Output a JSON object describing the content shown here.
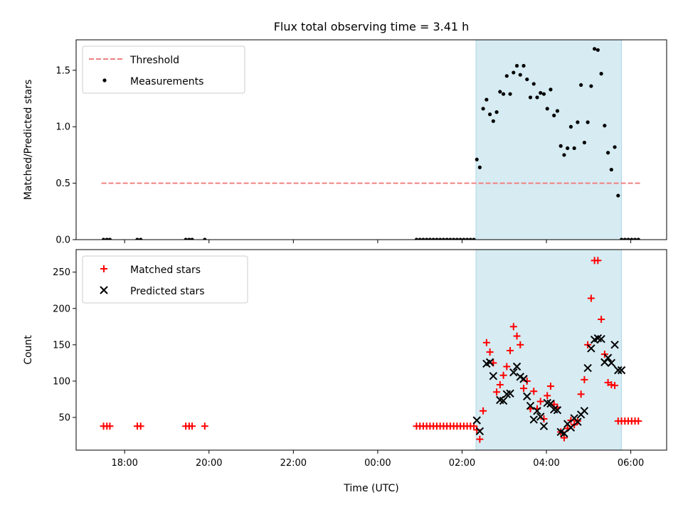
{
  "chart_data": {
    "type": "scatter",
    "title": "Flux total observing time = 3.41 h",
    "xlabel": "Time (UTC)",
    "x_unit": "hours since 00:00 UTC (negative = previous day)",
    "xlim": [
      -7.15,
      6.85
    ],
    "xticks": [
      {
        "value": -6,
        "label": "18:00"
      },
      {
        "value": -4,
        "label": "20:00"
      },
      {
        "value": -2,
        "label": "22:00"
      },
      {
        "value": 0,
        "label": "00:00"
      },
      {
        "value": 2,
        "label": "02:00"
      },
      {
        "value": 4,
        "label": "04:00"
      },
      {
        "value": 6,
        "label": "06:00"
      }
    ],
    "observing_window": [
      2.33,
      5.78
    ],
    "panels": [
      {
        "id": "ratio",
        "ylabel": "Matched/Predicted stars",
        "ylim": [
          0,
          1.77
        ],
        "yticks": [
          {
            "value": 0,
            "label": "0.0"
          },
          {
            "value": 0.5,
            "label": "0.5"
          },
          {
            "value": 1.0,
            "label": "1.0"
          },
          {
            "value": 1.5,
            "label": "1.5"
          }
        ],
        "legend": {
          "position": "top-left",
          "entries": [
            "Threshold",
            "Measurements"
          ]
        },
        "threshold": {
          "name": "Threshold",
          "value": 0.5,
          "x_range": [
            -6.55,
            6.25
          ],
          "color": "#f08080"
        },
        "measurements": {
          "name": "Measurements",
          "color": "#000000",
          "x": [
            -6.5,
            -6.42,
            -6.35,
            -5.7,
            -5.62,
            -4.55,
            -4.47,
            -4.4,
            -4.1,
            0.92,
            1.0,
            1.08,
            1.16,
            1.24,
            1.32,
            1.4,
            1.48,
            1.56,
            1.64,
            1.72,
            1.8,
            1.88,
            1.96,
            2.04,
            2.12,
            2.2,
            2.28,
            2.35,
            2.42,
            2.5,
            2.58,
            2.66,
            2.74,
            2.82,
            2.9,
            2.98,
            3.06,
            3.14,
            3.22,
            3.3,
            3.38,
            3.46,
            3.54,
            3.62,
            3.7,
            3.78,
            3.86,
            3.94,
            4.02,
            4.1,
            4.18,
            4.26,
            4.34,
            4.42,
            4.5,
            4.58,
            4.66,
            4.74,
            4.82,
            4.9,
            4.98,
            5.06,
            5.14,
            5.22,
            5.3,
            5.38,
            5.46,
            5.54,
            5.62,
            5.7,
            5.78,
            5.86,
            5.94,
            6.02,
            6.1,
            6.18
          ],
          "y": [
            0,
            0,
            0,
            0,
            0,
            0,
            0,
            0,
            0,
            0,
            0,
            0,
            0,
            0,
            0,
            0,
            0,
            0,
            0,
            0,
            0,
            0,
            0,
            0,
            0,
            0,
            0,
            0.71,
            0.64,
            1.16,
            1.24,
            1.11,
            1.05,
            1.13,
            1.31,
            1.29,
            1.45,
            1.29,
            1.48,
            1.54,
            1.46,
            1.54,
            1.42,
            1.26,
            1.38,
            1.26,
            1.3,
            1.29,
            1.16,
            1.33,
            1.1,
            1.14,
            0.83,
            0.75,
            0.81,
            1.0,
            0.81,
            1.04,
            1.37,
            0.86,
            1.04,
            1.36,
            1.69,
            1.68,
            1.47,
            1.01,
            0.77,
            0.62,
            0.82,
            0.39,
            0,
            0,
            0,
            0,
            0,
            0
          ]
        }
      },
      {
        "id": "counts",
        "ylabel": "Count",
        "ylim": [
          5,
          281
        ],
        "yticks": [
          {
            "value": 50,
            "label": "50"
          },
          {
            "value": 100,
            "label": "100"
          },
          {
            "value": 150,
            "label": "150"
          },
          {
            "value": 200,
            "label": "200"
          },
          {
            "value": 250,
            "label": "250"
          }
        ],
        "legend": {
          "position": "top-left",
          "entries": [
            "Matched stars",
            "Predicted stars"
          ]
        },
        "series": [
          {
            "name": "Matched stars",
            "marker": "+",
            "color": "#ff0000",
            "x": [
              -6.5,
              -6.42,
              -6.35,
              -5.7,
              -5.62,
              -4.55,
              -4.47,
              -4.4,
              -4.1,
              0.92,
              1.0,
              1.08,
              1.16,
              1.24,
              1.32,
              1.4,
              1.48,
              1.56,
              1.64,
              1.72,
              1.8,
              1.88,
              1.96,
              2.04,
              2.12,
              2.2,
              2.28,
              2.35,
              2.42,
              2.5,
              2.58,
              2.66,
              2.74,
              2.82,
              2.9,
              2.98,
              3.06,
              3.14,
              3.22,
              3.3,
              3.38,
              3.46,
              3.54,
              3.62,
              3.7,
              3.78,
              3.86,
              3.94,
              4.02,
              4.1,
              4.18,
              4.26,
              4.34,
              4.42,
              4.5,
              4.58,
              4.66,
              4.74,
              4.82,
              4.9,
              4.98,
              5.06,
              5.14,
              5.22,
              5.3,
              5.38,
              5.46,
              5.54,
              5.62,
              5.7,
              5.78,
              5.86,
              5.94,
              6.02,
              6.1,
              6.18
            ],
            "y": [
              38,
              38,
              38,
              38,
              38,
              38,
              38,
              38,
              38,
              38,
              38,
              38,
              38,
              38,
              38,
              38,
              38,
              38,
              38,
              38,
              38,
              38,
              38,
              38,
              38,
              38,
              38,
              33,
              20,
              59,
              153,
              140,
              125,
              85,
              95,
              108,
              120,
              142,
              175,
              162,
              150,
              90,
              100,
              62,
              86,
              62,
              72,
              48,
              80,
              93,
              68,
              64,
              30,
              22,
              35,
              46,
              40,
              45,
              82,
              102,
              150,
              214,
              266,
              266,
              185,
              137,
              98,
              95,
              94,
              45,
              45,
              45,
              45,
              45,
              45,
              45
            ]
          },
          {
            "name": "Predicted stars",
            "marker": "x",
            "color": "#000000",
            "x": [
              2.35,
              2.42,
              2.58,
              2.66,
              2.74,
              2.9,
              2.98,
              3.06,
              3.14,
              3.22,
              3.3,
              3.38,
              3.46,
              3.54,
              3.62,
              3.7,
              3.78,
              3.86,
              3.94,
              4.02,
              4.1,
              4.18,
              4.26,
              4.34,
              4.42,
              4.5,
              4.58,
              4.66,
              4.74,
              4.82,
              4.9,
              4.98,
              5.06,
              5.14,
              5.22,
              5.3,
              5.38,
              5.46,
              5.54,
              5.62,
              5.7,
              5.78
            ],
            "y": [
              46,
              31,
              124,
              126,
              107,
              74,
              73,
              82,
              83,
              112,
              120,
              106,
              103,
              79,
              66,
              47,
              59,
              51,
              38,
              70,
              69,
              61,
              60,
              30,
              28,
              41,
              36,
              49,
              44,
              54,
              59,
              118,
              145,
              157,
              159,
              158,
              126,
              132,
              125,
              150,
              115,
              115
            ]
          }
        ]
      }
    ]
  }
}
